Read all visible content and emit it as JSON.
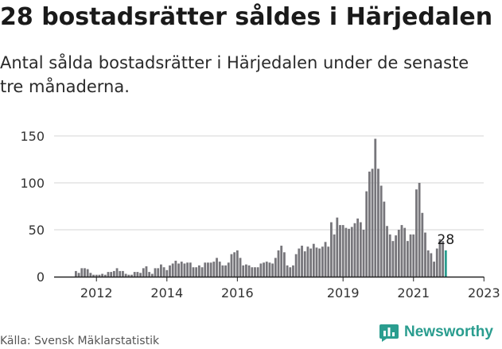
{
  "header": {
    "title": "28 bostadsrätter såldes i Härjedalen",
    "subtitle": "Antal sålda bostadsrätter i Härjedalen under de senaste tre månaderna."
  },
  "footer": {
    "source": "Källa: Svensk Mäklarstatistik",
    "brand": "Newsworthy",
    "brand_icon": "bar-chart-speech-icon"
  },
  "colors": {
    "bar": "#77767b",
    "highlight": "#2a9d8f",
    "grid": "#d6d6d6",
    "axis": "#222222",
    "brand": "#2a9d8f"
  },
  "chart_data": {
    "type": "bar",
    "title": "",
    "xlabel": "",
    "ylabel": "",
    "ylim": [
      0,
      150
    ],
    "yticks": [
      "0",
      "50",
      "100",
      "150"
    ],
    "xticks": [
      {
        "label": "2012",
        "index": 7
      },
      {
        "label": "2014",
        "index": 31
      },
      {
        "label": "2016",
        "index": 55
      },
      {
        "label": "2019",
        "index": 91
      },
      {
        "label": "2021",
        "index": 115
      },
      {
        "label": "2023",
        "index": 139
      }
    ],
    "highlight_label": "28",
    "values": [
      6,
      4,
      9,
      9,
      8,
      4,
      2,
      2,
      2,
      3,
      2,
      5,
      5,
      6,
      9,
      6,
      6,
      3,
      2,
      2,
      5,
      5,
      4,
      9,
      11,
      5,
      3,
      9,
      9,
      13,
      10,
      7,
      12,
      14,
      17,
      14,
      16,
      14,
      15,
      15,
      10,
      10,
      12,
      10,
      15,
      15,
      15,
      16,
      20,
      16,
      12,
      12,
      15,
      24,
      26,
      28,
      20,
      12,
      13,
      12,
      10,
      10,
      10,
      14,
      15,
      16,
      15,
      14,
      20,
      28,
      33,
      26,
      12,
      10,
      12,
      24,
      30,
      33,
      27,
      32,
      30,
      35,
      31,
      30,
      32,
      37,
      32,
      58,
      45,
      63,
      55,
      55,
      52,
      51,
      53,
      57,
      62,
      58,
      50,
      91,
      112,
      115,
      147,
      115,
      97,
      80,
      54,
      45,
      38,
      44,
      50,
      55,
      52,
      38,
      45,
      45,
      93,
      100,
      68,
      47,
      28,
      25,
      16,
      30,
      40,
      38,
      28
    ]
  }
}
